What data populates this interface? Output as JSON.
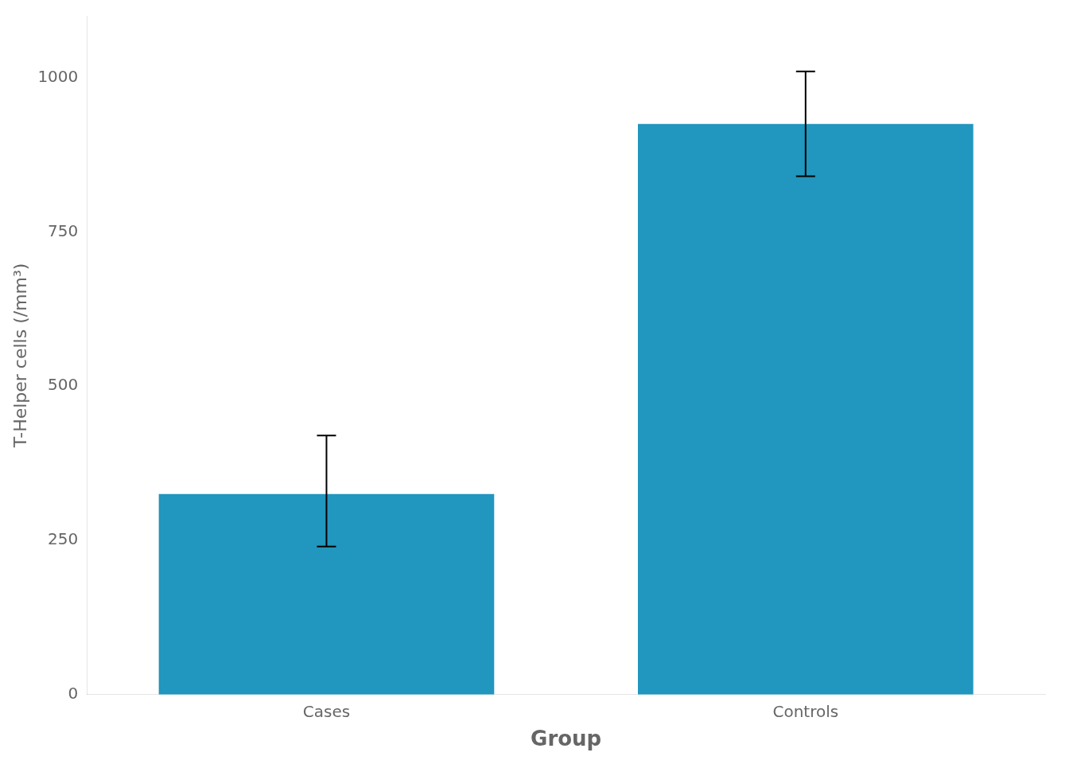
{
  "chart_data": {
    "type": "bar",
    "categories": [
      "Cases",
      "Controls"
    ],
    "values": [
      325,
      925
    ],
    "error_lower": [
      85,
      85
    ],
    "error_upper": [
      95,
      85
    ],
    "color": "#2196BE",
    "xlabel": "Group",
    "ylabel": "T-Helper cells (/mm³)",
    "ylim": [
      0,
      1100
    ],
    "yticks": [
      0,
      250,
      500,
      750,
      1000
    ],
    "grid": false
  }
}
